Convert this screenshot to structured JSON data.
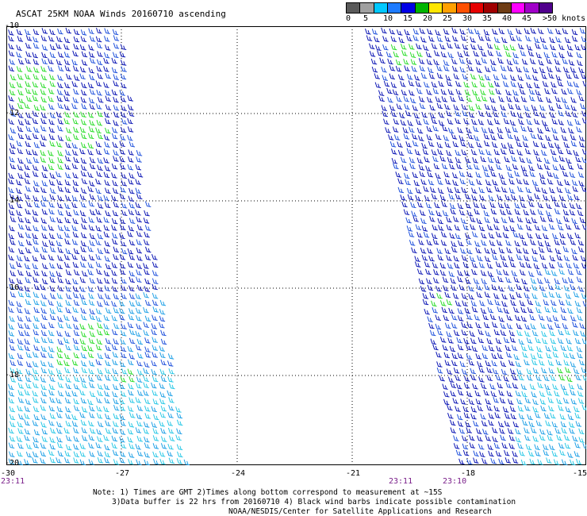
{
  "title": "ASCAT 25KM NOAA Winds 20160710 ascending",
  "legend": {
    "labels": [
      "0",
      "5",
      "10",
      "15",
      "20",
      "25",
      "30",
      "35",
      "40",
      "45",
      ">50 knots"
    ],
    "colors": [
      "#5a5a5a",
      "#a0a0a0",
      "#00c8ff",
      "#1e7bff",
      "#0000e6",
      "#00b400",
      "#ffe600",
      "#ffa000",
      "#ff5000",
      "#e60000",
      "#a00000",
      "#6e3c14",
      "#ff00ff",
      "#a000c8",
      "#50008c"
    ]
  },
  "map": {
    "lat_labels": [
      "-10",
      "-12",
      "-14",
      "-16",
      "-18",
      "-20"
    ],
    "lon_labels": [
      "-30",
      "-27",
      "-24",
      "-21",
      "-18",
      "-15"
    ],
    "time_labels": [
      "23:11",
      "23:11",
      "23:10"
    ]
  },
  "notes": {
    "line1": "Note: 1) Times are GMT 2)Times along bottom correspond to measurement at ~15S",
    "line2": "3)Data buffer is 22 hrs from 20160710 4) Black wind barbs indicate possible contamination",
    "line3": "NOAA/NESDIS/Center for Satellite Applications and Research"
  }
}
